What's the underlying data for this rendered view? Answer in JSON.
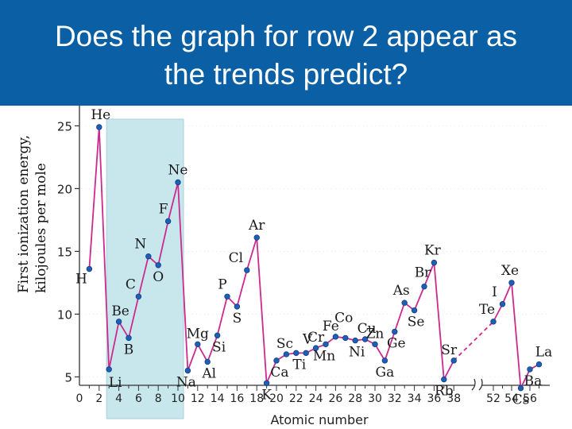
{
  "slide": {
    "title": "Does the graph for row 2 appear as\nthe trends predict?"
  },
  "chart_data": {
    "type": "line",
    "title": "",
    "ylabel_line1": "First ionization energy,",
    "ylabel_line2": "kilojoules per mole",
    "xlabel": "Atomic number",
    "ylim": [
      3,
      27
    ],
    "yticks": [
      5,
      10,
      15,
      20,
      25
    ],
    "xticks": [
      0,
      2,
      4,
      6,
      8,
      10,
      12,
      14,
      16,
      18,
      20,
      22,
      24,
      26,
      28,
      30,
      32,
      34,
      36,
      38,
      52,
      54,
      56
    ],
    "axis_break_between": [
      38,
      52
    ],
    "highlight_range": [
      3,
      10
    ],
    "colors": {
      "line": "#cc2a8e",
      "point": "#1f5fb8",
      "highlight": "#bfe3ea",
      "banner": "#0b5fa5"
    },
    "points": [
      {
        "x": 1,
        "y": 13.6,
        "label": "H"
      },
      {
        "x": 2,
        "y": 24.9,
        "label": "He"
      },
      {
        "x": 3,
        "y": 5.6,
        "label": "Li"
      },
      {
        "x": 4,
        "y": 9.4,
        "label": "Be"
      },
      {
        "x": 5,
        "y": 8.1,
        "label": "B"
      },
      {
        "x": 6,
        "y": 11.4,
        "label": "C"
      },
      {
        "x": 7,
        "y": 14.6,
        "label": "N"
      },
      {
        "x": 8,
        "y": 13.9,
        "label": "O"
      },
      {
        "x": 9,
        "y": 17.4,
        "label": "F"
      },
      {
        "x": 10,
        "y": 20.5,
        "label": "Ne"
      },
      {
        "x": 11,
        "y": 5.5,
        "label": "Na"
      },
      {
        "x": 12,
        "y": 7.6,
        "label": "Mg"
      },
      {
        "x": 13,
        "y": 6.2,
        "label": "Al"
      },
      {
        "x": 14,
        "y": 8.3,
        "label": "Si"
      },
      {
        "x": 15,
        "y": 11.4,
        "label": "P"
      },
      {
        "x": 16,
        "y": 10.6,
        "label": "S"
      },
      {
        "x": 17,
        "y": 13.5,
        "label": "Cl"
      },
      {
        "x": 18,
        "y": 16.1,
        "label": "Ar"
      },
      {
        "x": 19,
        "y": 4.5,
        "label": "K"
      },
      {
        "x": 20,
        "y": 6.3,
        "label": "Ca"
      },
      {
        "x": 21,
        "y": 6.8,
        "label": "Sc"
      },
      {
        "x": 22,
        "y": 6.9,
        "label": "Ti"
      },
      {
        "x": 23,
        "y": 6.9,
        "label": "V"
      },
      {
        "x": 24,
        "y": 7.3,
        "label": "Cr"
      },
      {
        "x": 25,
        "y": 7.6,
        "label": "Mn"
      },
      {
        "x": 26,
        "y": 8.2,
        "label": "Fe"
      },
      {
        "x": 27,
        "y": 8.1,
        "label": "Co"
      },
      {
        "x": 28,
        "y": 7.9,
        "label": "Ni"
      },
      {
        "x": 29,
        "y": 8.0,
        "label": "Cu"
      },
      {
        "x": 30,
        "y": 7.6,
        "label": "Zn"
      },
      {
        "x": 31,
        "y": 6.3,
        "label": "Ga"
      },
      {
        "x": 32,
        "y": 8.6,
        "label": "Ge"
      },
      {
        "x": 33,
        "y": 10.9,
        "label": "As"
      },
      {
        "x": 34,
        "y": 10.3,
        "label": "Se"
      },
      {
        "x": 35,
        "y": 12.2,
        "label": "Br"
      },
      {
        "x": 36,
        "y": 14.1,
        "label": "Kr"
      },
      {
        "x": 37,
        "y": 4.8,
        "label": "Rb"
      },
      {
        "x": 38,
        "y": 6.3,
        "label": "Sr"
      },
      {
        "x": 52,
        "y": 9.4,
        "label": "Te"
      },
      {
        "x": 53,
        "y": 10.8,
        "label": "I"
      },
      {
        "x": 54,
        "y": 12.5,
        "label": "Xe"
      },
      {
        "x": 55,
        "y": 4.1,
        "label": "Cs"
      },
      {
        "x": 56,
        "y": 5.6,
        "label": "Ba"
      },
      {
        "x": 57,
        "y": 6.0,
        "label": "La"
      }
    ]
  }
}
